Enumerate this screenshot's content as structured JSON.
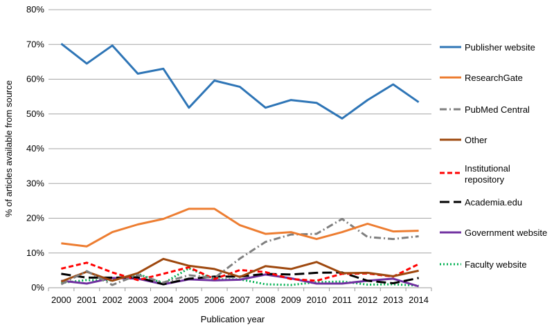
{
  "chart_data": {
    "type": "line",
    "xlabel": "Publication year",
    "ylabel": "% of articles available from source",
    "ylim": [
      0,
      80
    ],
    "yticks": [
      "0%",
      "10%",
      "20%",
      "30%",
      "40%",
      "50%",
      "60%",
      "70%",
      "80%"
    ],
    "grid": "horizontal",
    "legend_position": "right",
    "categories": [
      "2000",
      "2001",
      "2002",
      "2003",
      "2004",
      "2005",
      "2006",
      "2007",
      "2008",
      "2009",
      "2010",
      "2011",
      "2012",
      "2013",
      "2014"
    ],
    "series": [
      {
        "name": "Publisher website",
        "color": "#2e75b6",
        "dash": "solid",
        "values": [
          70.2,
          64.5,
          69.7,
          61.6,
          63.0,
          51.8,
          59.6,
          57.8,
          51.8,
          54.0,
          53.2,
          48.7,
          54.0,
          58.5,
          53.4
        ]
      },
      {
        "name": "ResearchGate",
        "color": "#ed7d31",
        "dash": "solid",
        "values": [
          12.8,
          11.9,
          16.0,
          18.2,
          19.8,
          22.7,
          22.7,
          18.0,
          15.5,
          16.0,
          14.0,
          16.0,
          18.4,
          16.2,
          16.4
        ]
      },
      {
        "name": "PubMed Central",
        "color": "#7f7f7f",
        "dash": "dashdot",
        "values": [
          1.0,
          4.8,
          0.8,
          3.7,
          1.5,
          3.6,
          2.8,
          8.4,
          13.2,
          15.3,
          15.5,
          19.8,
          14.6,
          14.0,
          14.8
        ]
      },
      {
        "name": "Other",
        "color": "#9e480e",
        "dash": "solid",
        "values": [
          1.8,
          4.6,
          2.0,
          4.2,
          8.3,
          6.3,
          5.4,
          3.1,
          6.2,
          5.4,
          7.4,
          4.2,
          4.3,
          3.3,
          4.9
        ]
      },
      {
        "name": "Institutional repository",
        "color": "#ff0000",
        "dash": "dash",
        "values": [
          5.5,
          7.2,
          4.4,
          2.2,
          4.0,
          5.9,
          2.5,
          5.1,
          4.5,
          2.5,
          2.0,
          4.0,
          4.1,
          3.2,
          6.8
        ]
      },
      {
        "name": "Academia.edu",
        "color": "#000000",
        "dash": "longdash",
        "values": [
          4.0,
          2.9,
          2.9,
          3.0,
          1.0,
          2.6,
          3.2,
          3.2,
          4.0,
          3.8,
          4.3,
          4.4,
          2.0,
          1.3,
          2.8
        ]
      },
      {
        "name": "Government website",
        "color": "#7030a0",
        "dash": "solid",
        "values": [
          2.0,
          1.2,
          2.8,
          2.6,
          1.0,
          2.4,
          2.1,
          2.3,
          3.8,
          2.7,
          1.2,
          1.2,
          2.0,
          2.6,
          0.4
        ]
      },
      {
        "name": "Faculty website",
        "color": "#00b050",
        "dash": "dot",
        "values": [
          1.4,
          2.2,
          2.1,
          4.0,
          1.3,
          5.6,
          2.4,
          2.4,
          1.0,
          0.8,
          1.6,
          1.8,
          0.9,
          1.0,
          0.6
        ]
      }
    ]
  }
}
